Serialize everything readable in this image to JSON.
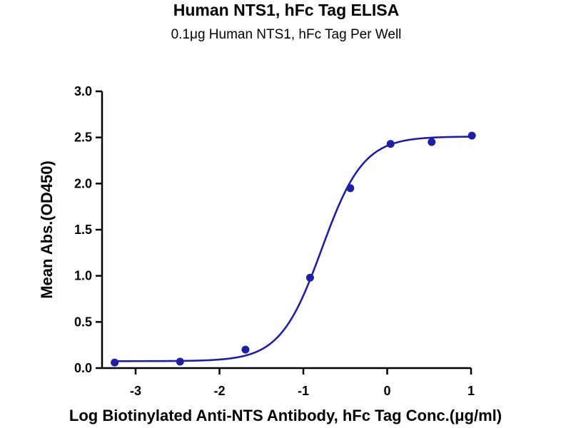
{
  "chart_data": {
    "type": "scatter",
    "title": "Human NTS1, hFc Tag ELISA",
    "subtitle": "0.1μg Human NTS1, hFc Tag Per Well",
    "xlabel": "Log Biotinylated Anti-NTS Antibody, hFc Tag Conc.(μg/ml)",
    "ylabel": "Mean Abs.(OD450)",
    "xlim": [
      -3.4,
      1.0
    ],
    "ylim": [
      0.0,
      3.0
    ],
    "x_ticks": [
      "-3",
      "-2",
      "-1",
      "0",
      "1"
    ],
    "x_tick_values": [
      -3,
      -2,
      -1,
      0,
      1
    ],
    "y_ticks": [
      "0.0",
      "0.5",
      "1.0",
      "1.5",
      "2.0",
      "2.5",
      "3.0"
    ],
    "y_tick_values": [
      0.0,
      0.5,
      1.0,
      1.5,
      2.0,
      2.5,
      3.0
    ],
    "grid": false,
    "colors": {
      "series": "#1f1fa3"
    },
    "series": [
      {
        "points": [
          {
            "x": -3.25,
            "y": 0.06
          },
          {
            "x": -2.47,
            "y": 0.07
          },
          {
            "x": -1.69,
            "y": 0.2
          },
          {
            "x": -0.92,
            "y": 0.98
          },
          {
            "x": -0.44,
            "y": 1.95
          },
          {
            "x": 0.04,
            "y": 2.43
          },
          {
            "x": 0.53,
            "y": 2.45
          },
          {
            "x": 1.01,
            "y": 2.52
          }
        ],
        "fit": {
          "model": "4PL",
          "bottom": 0.075,
          "top": 2.51,
          "logEC50": -0.78,
          "hill": 1.75,
          "x_range": [
            -3.25,
            1.0
          ]
        }
      }
    ]
  }
}
